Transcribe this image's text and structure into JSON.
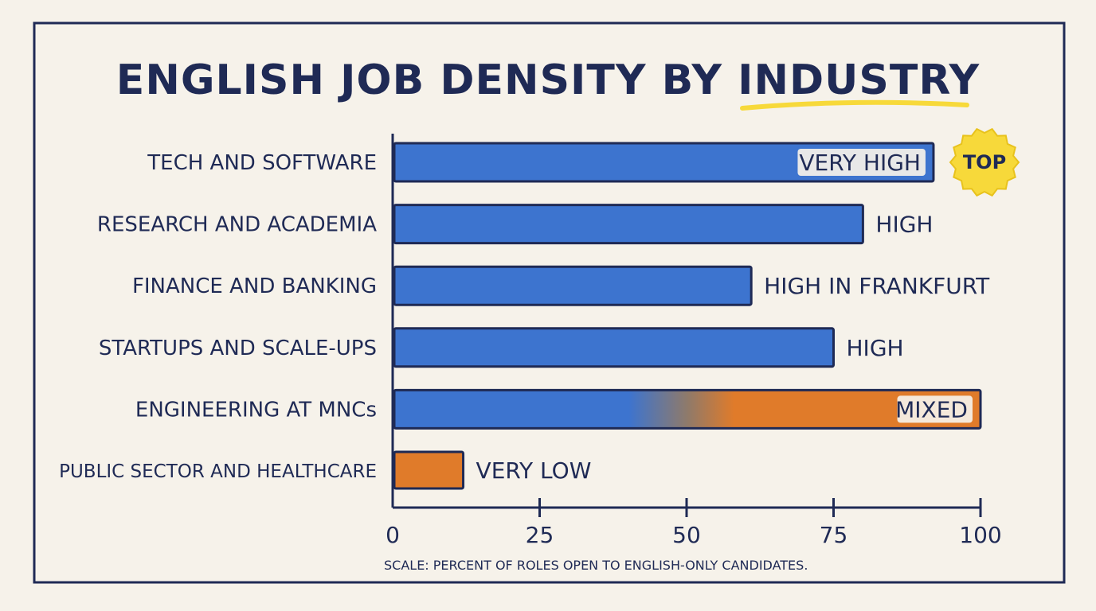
{
  "chart_data": {
    "type": "bar",
    "orientation": "horizontal",
    "title": "ENGLISH JOB DENSITY BY INDUSTRY",
    "categories": [
      "TECH AND SOFTWARE",
      "RESEARCH AND ACADEMIA",
      "FINANCE AND BANKING",
      "STARTUPS AND SCALE-UPS",
      "ENGINEERING AT MNCs",
      "PUBLIC SECTOR AND HEALTHCARE"
    ],
    "values": [
      92,
      80,
      61,
      75,
      100,
      12
    ],
    "bar_labels": [
      "VERY HIGH",
      "HIGH",
      "HIGH IN FRANKFURT",
      "HIGH",
      "MIXED",
      "VERY LOW"
    ],
    "bar_colors": [
      "blue",
      "blue",
      "blue",
      "blue",
      "blue-to-orange",
      "orange"
    ],
    "xlim": [
      0,
      100
    ],
    "xticks": [
      0,
      25,
      50,
      75,
      100
    ],
    "xtick_labels": [
      "0",
      "25",
      "50",
      "75",
      "100"
    ],
    "grid": false,
    "badge": {
      "text": "TOP",
      "category_index": 0
    },
    "footnote": "SCALE: PERCENT OF ROLES OPEN TO ENGLISH-ONLY CANDIDATES."
  },
  "colors": {
    "blue": "#3d74cf",
    "orange": "#e07b2a",
    "ink": "#1f2a55",
    "highlight": "#f7d93a",
    "background": "#f6f2ea"
  }
}
